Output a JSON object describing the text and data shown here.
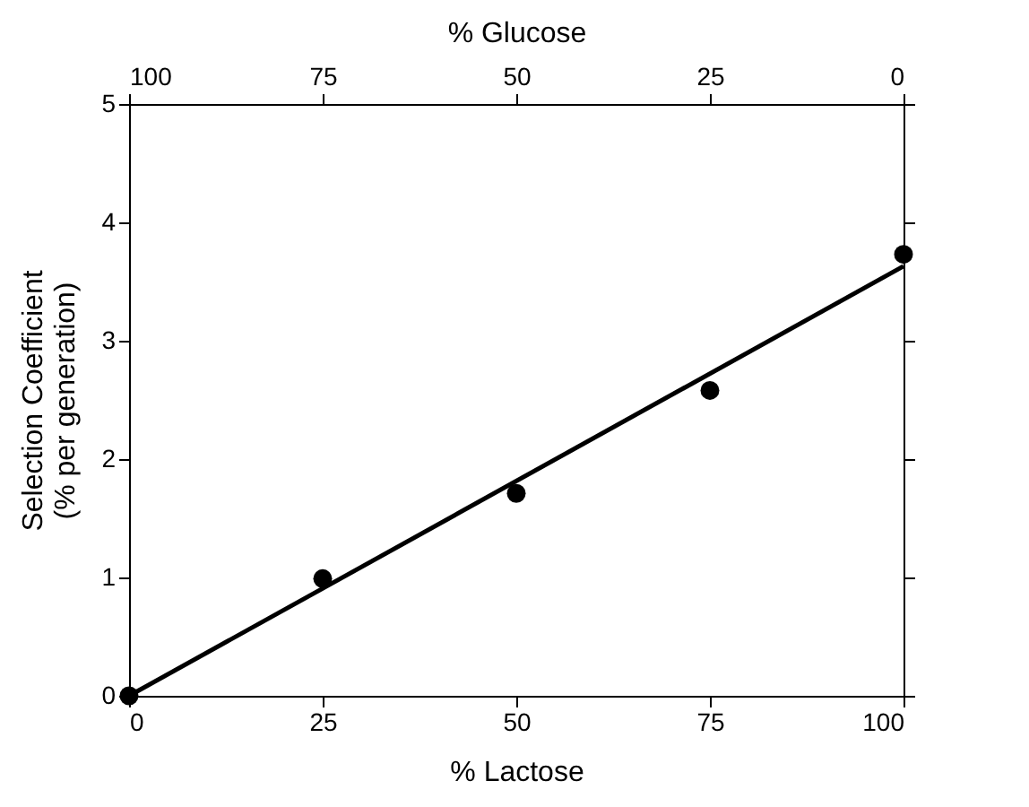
{
  "chart_data": {
    "type": "scatter",
    "xlabel": "% Lactose",
    "x2label": "% Glucose",
    "ylabel": "Selection Coefficient\n(% per generation)",
    "xlim": [
      0,
      100
    ],
    "xticks": [
      0,
      25,
      50,
      75,
      100
    ],
    "x2lim": [
      100,
      0
    ],
    "x2ticks": [
      100,
      75,
      50,
      25,
      0
    ],
    "ylim": [
      0,
      5
    ],
    "yticks": [
      0,
      1,
      2,
      3,
      4,
      5
    ],
    "grid": false,
    "series": [
      {
        "color": "#000000",
        "marker": "circle",
        "x": [
          0,
          25,
          50,
          75,
          100
        ],
        "values": [
          0,
          0.99,
          1.71,
          2.58,
          3.73
        ]
      },
      {
        "type": "line",
        "color": "#000000",
        "line_style": "solid",
        "x": [
          0,
          100
        ],
        "values": [
          0,
          3.63
        ]
      }
    ]
  }
}
